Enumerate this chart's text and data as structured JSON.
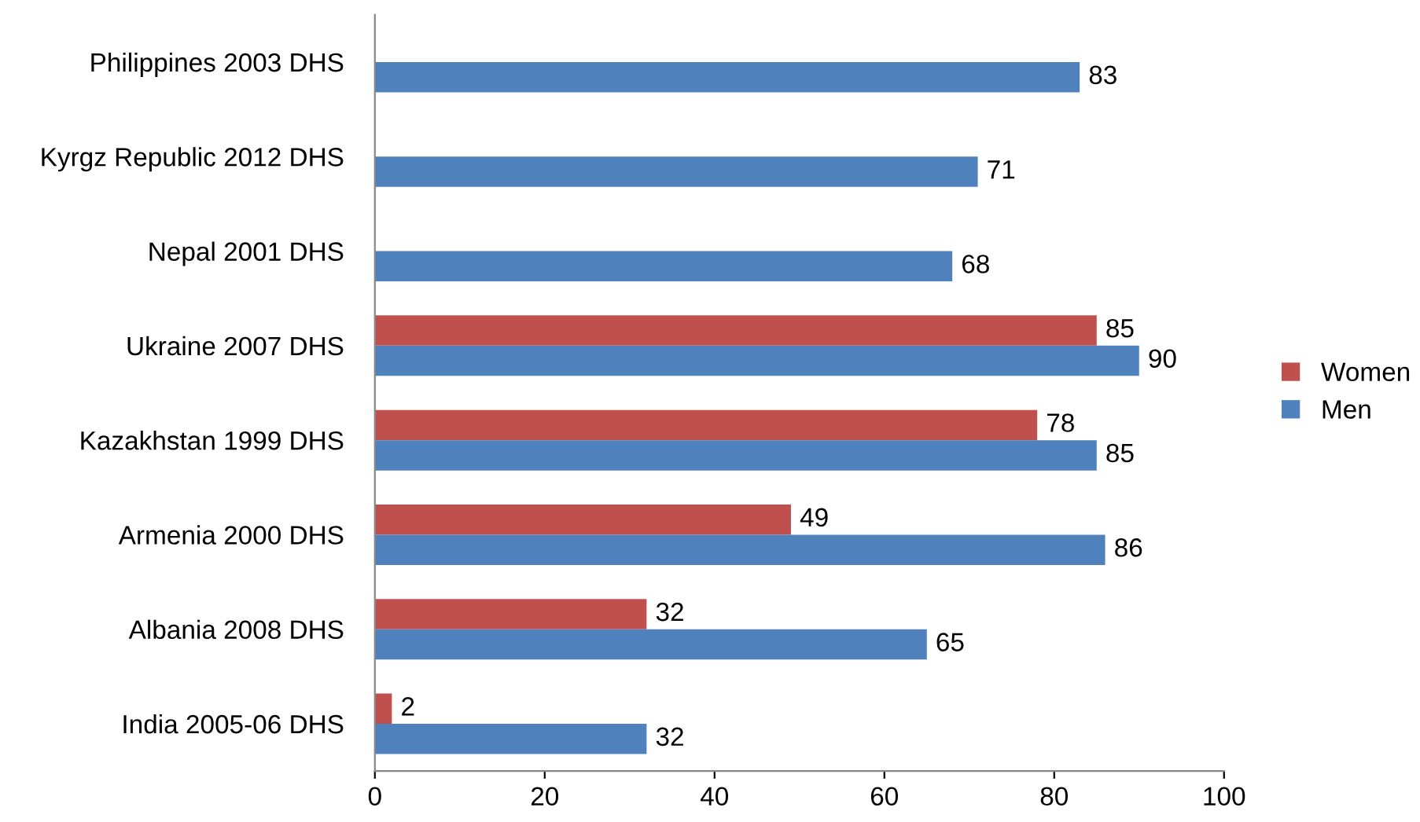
{
  "chart_data": {
    "type": "bar",
    "orientation": "horizontal",
    "categories": [
      "Philippines 2003 DHS",
      "Kyrgz Republic 2012 DHS",
      "Nepal 2001 DHS",
      "Ukraine 2007 DHS",
      "Kazakhstan 1999 DHS",
      "Armenia 2000 DHS",
      "Albania 2008 DHS",
      "India 2005-06 DHS"
    ],
    "series": [
      {
        "name": "Women",
        "color": "#c0504d",
        "values": [
          null,
          null,
          null,
          85,
          78,
          49,
          32,
          2
        ]
      },
      {
        "name": "Men",
        "color": "#4f81bd",
        "values": [
          83,
          71,
          68,
          90,
          85,
          86,
          65,
          32
        ]
      }
    ],
    "xlim": [
      0,
      100
    ],
    "xticks": [
      0,
      20,
      40,
      60,
      80,
      100
    ],
    "grid": false,
    "legend": "right",
    "data_labels": true
  }
}
